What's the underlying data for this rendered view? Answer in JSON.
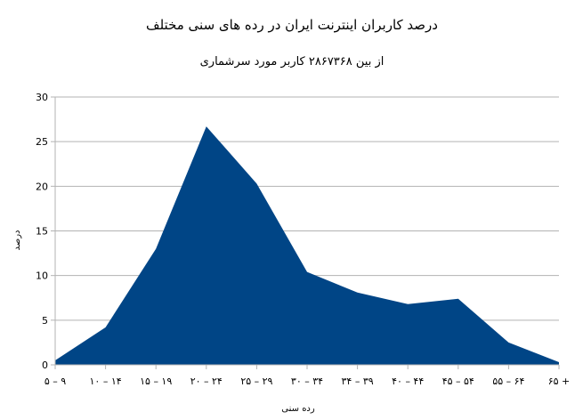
{
  "chart_data": {
    "type": "area",
    "title": "درصد کاربران اینترنت ایران در رده های سنی مختلف",
    "subtitle": "از بین ۲۸۶۷۳۶۸ کاربر مورد سرشماری",
    "xlabel": "رده سنی",
    "ylabel": "درصد",
    "categories": [
      "۵ – ۹",
      "۱۰ – ۱۴",
      "۱۵ – ۱۹",
      "۲۰ – ۲۴",
      "۲۵ – ۲۹",
      "۳۰ – ۳۴",
      "۳۴ – ۳۹",
      "۴۰ – ۴۴",
      "۴۵ – ۵۴",
      "۵۵ – ۶۴",
      "۶۵ +"
    ],
    "values": [
      0.5,
      4.2,
      13.0,
      26.7,
      20.3,
      10.4,
      8.1,
      6.8,
      7.4,
      2.5,
      0.3
    ],
    "ylim": [
      0,
      30
    ],
    "yticks": [
      "0",
      "5",
      "10",
      "15",
      "20",
      "25",
      "30"
    ],
    "grid": true,
    "legend": "none",
    "color": "#004586"
  }
}
